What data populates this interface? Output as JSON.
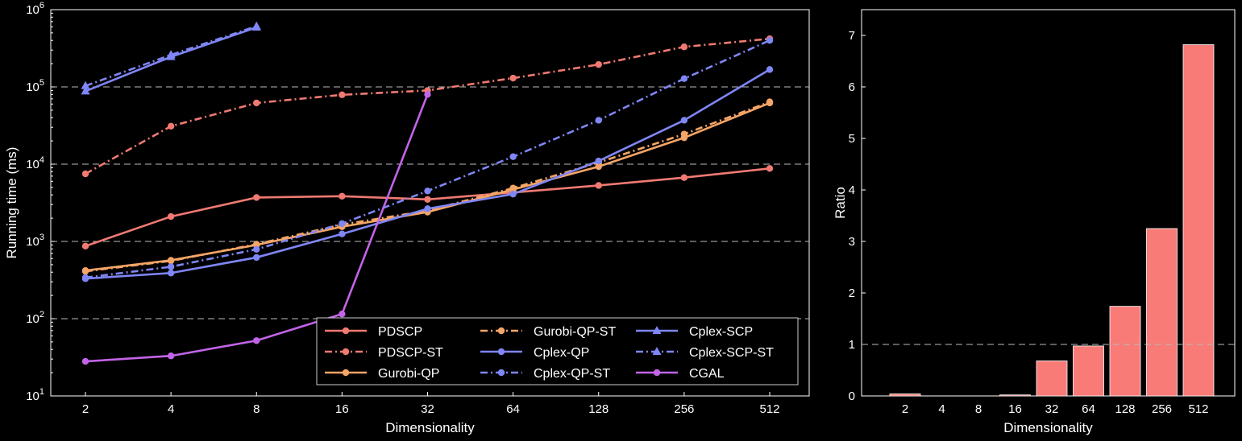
{
  "chart_data": [
    {
      "type": "line",
      "xlabel": "Dimensionality",
      "ylabel": "Running time (ms)",
      "yscale": "log",
      "ylim": [
        10,
        1000000
      ],
      "categories": [
        "2",
        "4",
        "8",
        "16",
        "32",
        "64",
        "128",
        "256",
        "512"
      ],
      "yticks": [
        {
          "base": "10",
          "exp": "1",
          "value": 10
        },
        {
          "base": "10",
          "exp": "2",
          "value": 100
        },
        {
          "base": "10",
          "exp": "3",
          "value": 1000
        },
        {
          "base": "10",
          "exp": "4",
          "value": 10000
        },
        {
          "base": "10",
          "exp": "5",
          "value": 100000
        },
        {
          "base": "10",
          "exp": "6",
          "value": 1000000
        }
      ],
      "grid": "horizontal dashed",
      "legend_position": "lower-center",
      "series": [
        {
          "name": "PDSCP",
          "color": "#f07a72",
          "dash": "solid",
          "marker": "circle",
          "values": [
            870,
            2100,
            3700,
            3850,
            3500,
            4300,
            5300,
            6700,
            8800
          ]
        },
        {
          "name": "PDSCP-ST",
          "color": "#f07a72",
          "dash": "dashdot",
          "marker": "circle",
          "values": [
            7500,
            31000,
            62000,
            79000,
            90000,
            130000,
            195000,
            330000,
            420000
          ]
        },
        {
          "name": "Gurobi-QP",
          "color": "#f5a567",
          "dash": "solid",
          "marker": "circle",
          "values": [
            420,
            570,
            900,
            1550,
            2400,
            4700,
            9300,
            22000,
            62000
          ]
        },
        {
          "name": "Gurobi-QP-ST",
          "color": "#f5a567",
          "dash": "dashdot",
          "marker": "circle",
          "values": [
            410,
            560,
            920,
            1650,
            2500,
            4900,
            10500,
            24500,
            64000
          ]
        },
        {
          "name": "Cplex-QP",
          "color": "#7f86f5",
          "dash": "solid",
          "marker": "circle",
          "values": [
            330,
            390,
            620,
            1250,
            2650,
            4100,
            11000,
            37000,
            168000
          ]
        },
        {
          "name": "Cplex-QP-ST",
          "color": "#7f86f5",
          "dash": "dashdot",
          "marker": "circle",
          "values": [
            340,
            470,
            790,
            1700,
            4500,
            12500,
            37000,
            128000,
            400000
          ]
        },
        {
          "name": "Cplex-SCP",
          "color": "#7f86f5",
          "dash": "solid",
          "marker": "triangle",
          "values": [
            88000,
            245000,
            590000,
            null,
            null,
            null,
            null,
            null,
            null
          ]
        },
        {
          "name": "Cplex-SCP-ST",
          "color": "#7f86f5",
          "dash": "dashdot",
          "marker": "triangle",
          "values": [
            103000,
            260000,
            610000,
            null,
            null,
            null,
            null,
            null,
            null
          ]
        },
        {
          "name": "CGAL",
          "color": "#c264e8",
          "dash": "solid",
          "marker": "circle",
          "values": [
            28,
            33,
            52,
            115,
            80000,
            null,
            null,
            null,
            null
          ]
        }
      ]
    },
    {
      "type": "bar",
      "xlabel": "Dimensionality",
      "ylabel": "Ratio",
      "ylim": [
        0,
        7.5
      ],
      "categories": [
        "2",
        "4",
        "8",
        "16",
        "32",
        "64",
        "128",
        "256",
        "512"
      ],
      "values": [
        0.04,
        0.0,
        0.0,
        0.02,
        0.68,
        0.97,
        1.74,
        3.25,
        6.82
      ],
      "yticks": [
        "0",
        "1",
        "2",
        "3",
        "4",
        "5",
        "6",
        "7"
      ],
      "reference_line": 1,
      "color": "#f87b77"
    }
  ]
}
